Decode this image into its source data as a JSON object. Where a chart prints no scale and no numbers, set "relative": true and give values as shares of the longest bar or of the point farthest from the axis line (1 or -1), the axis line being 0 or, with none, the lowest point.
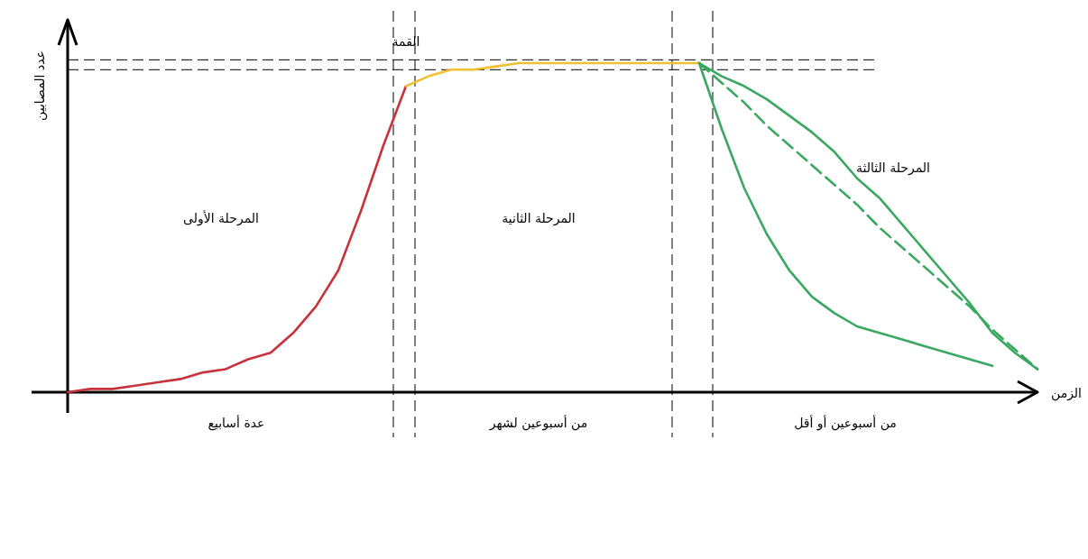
{
  "chart_data": {
    "type": "line",
    "relative": true,
    "xlabel": "الزمن",
    "ylabel": "عدد المصابين",
    "categories": [
      null,
      null,
      null,
      null,
      null,
      null,
      null,
      null,
      null,
      null,
      null,
      null,
      null,
      null,
      null,
      null,
      null,
      null,
      null,
      null,
      null,
      null,
      null,
      null,
      null,
      null,
      null,
      null,
      null,
      null,
      null,
      null,
      null,
      null,
      null,
      null,
      null,
      null,
      null,
      null,
      null,
      null,
      null,
      null
    ],
    "series": [
      {
        "color": "#c8323a",
        "values": [
          0,
          0.01,
          0.01,
          0.02,
          0.03,
          0.04,
          0.06,
          0.07,
          0.1,
          0.12,
          0.18,
          0.26,
          0.37,
          0.55,
          0.75,
          0.93,
          null,
          null,
          null,
          null,
          null,
          null,
          null,
          null,
          null,
          null,
          null,
          null,
          null,
          null,
          null,
          null,
          null,
          null,
          null,
          null,
          null,
          null,
          null,
          null,
          null,
          null,
          null,
          null
        ]
      },
      {
        "color": "#f0c030",
        "values": [
          null,
          null,
          null,
          null,
          null,
          null,
          null,
          null,
          null,
          null,
          null,
          null,
          null,
          null,
          null,
          0.93,
          0.96,
          0.98,
          0.98,
          0.99,
          1,
          1,
          1,
          1,
          1,
          1,
          1,
          1,
          1,
          null,
          null,
          null,
          null,
          null,
          null,
          null,
          null,
          null,
          null,
          null,
          null,
          null,
          null,
          null
        ]
      },
      {
        "color": "#3aa860",
        "values": [
          null,
          null,
          null,
          null,
          null,
          null,
          null,
          null,
          null,
          null,
          null,
          null,
          null,
          null,
          null,
          null,
          null,
          null,
          null,
          null,
          null,
          null,
          null,
          null,
          null,
          null,
          null,
          null,
          1,
          0.8,
          0.62,
          0.48,
          0.37,
          0.29,
          0.24,
          0.2,
          0.18,
          0.16,
          0.14,
          0.12,
          0.1,
          0.08,
          null,
          null
        ]
      },
      {
        "color": "#3aa860",
        "line_style": "dashed",
        "values": [
          null,
          null,
          null,
          null,
          null,
          null,
          null,
          null,
          null,
          null,
          null,
          null,
          null,
          null,
          null,
          null,
          null,
          null,
          null,
          null,
          null,
          null,
          null,
          null,
          null,
          null,
          null,
          null,
          1,
          0.94,
          0.88,
          0.81,
          0.75,
          0.69,
          0.63,
          0.57,
          0.5,
          0.44,
          0.38,
          0.32,
          0.26,
          0.19,
          0.13,
          0.07
        ]
      },
      {
        "color": "#3aa860",
        "values": [
          null,
          null,
          null,
          null,
          null,
          null,
          null,
          null,
          null,
          null,
          null,
          null,
          null,
          null,
          null,
          null,
          null,
          null,
          null,
          null,
          null,
          null,
          null,
          null,
          null,
          null,
          null,
          null,
          1,
          0.96,
          0.93,
          0.89,
          0.84,
          0.79,
          0.73,
          0.65,
          0.59,
          0.51,
          0.43,
          0.35,
          0.27,
          0.18,
          0.12,
          0.07
        ]
      }
    ],
    "ref_lines": [
      {
        "axis": "y",
        "value": 1.01,
        "color": "#000000",
        "line_style": "dashed"
      },
      {
        "axis": "y",
        "value": 0.98,
        "color": "#000000",
        "line_style": "dashed"
      }
    ],
    "annotations": [
      "القمة",
      "المرحلة الأولى",
      "المرحلة الثانية",
      "المرحلة الثالثة",
      "عدة أسابيع",
      "من أسبوعين لشهر",
      "من أسبوعين أو أقل"
    ]
  }
}
